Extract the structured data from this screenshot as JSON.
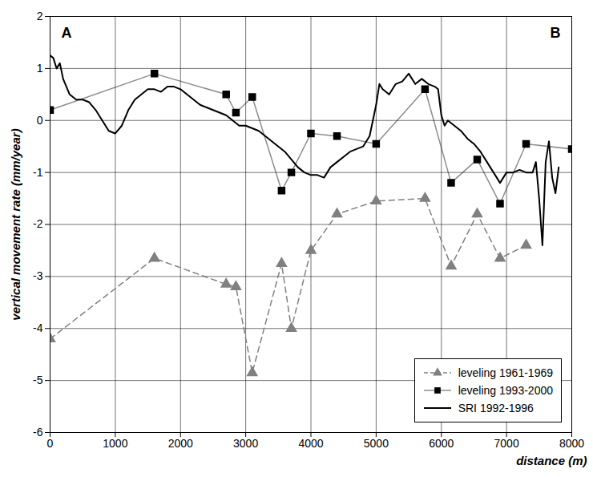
{
  "chart_data": {
    "type": "line",
    "xlabel": "distance (m)",
    "ylabel": "vertical movement rate (mm/year)",
    "annotations": [
      "A",
      "B"
    ],
    "xlim": [
      0,
      8000
    ],
    "xticks": [
      0,
      1000,
      2000,
      3000,
      4000,
      5000,
      6000,
      7000,
      8000
    ],
    "ylim": [
      -6,
      2
    ],
    "yticks": [
      -6,
      -5,
      -4,
      -3,
      -2,
      -1,
      0,
      1,
      2
    ],
    "grid": true,
    "legend": "bottom-right",
    "series": [
      {
        "name": "leveling 1961-1969",
        "color": "#808080",
        "marker": "triangle",
        "line_style": "dashed",
        "x": [
          0,
          1600,
          2700,
          2850,
          3100,
          3550,
          3700,
          4000,
          4400,
          5000,
          5750,
          6150,
          6550,
          6900,
          7300
        ],
        "values": [
          -4.2,
          -2.65,
          -3.15,
          -3.2,
          -4.85,
          -2.75,
          -4.0,
          -2.5,
          -1.8,
          -1.55,
          -1.5,
          -2.8,
          -1.8,
          -2.65,
          -2.4
        ]
      },
      {
        "name": "leveling 1993-2000",
        "color": "#000000",
        "marker": "square",
        "line_style": "solid",
        "x": [
          0,
          1600,
          2700,
          2850,
          3100,
          3550,
          3700,
          4000,
          4400,
          5000,
          5750,
          6150,
          6550,
          6900,
          7300,
          8000
        ],
        "values": [
          0.2,
          0.9,
          0.5,
          0.15,
          0.45,
          -1.35,
          -1.0,
          -0.25,
          -0.3,
          -0.45,
          0.6,
          -1.2,
          -0.75,
          -1.6,
          -0.45,
          -0.55
        ]
      },
      {
        "name": "SRI 1992-1996",
        "color": "#000000",
        "marker": "none",
        "line_style": "solid",
        "x": [
          0,
          50,
          100,
          150,
          200,
          300,
          400,
          500,
          600,
          700,
          800,
          900,
          1000,
          1100,
          1200,
          1300,
          1400,
          1500,
          1600,
          1700,
          1800,
          1900,
          2000,
          2100,
          2200,
          2300,
          2400,
          2500,
          2600,
          2700,
          2800,
          2900,
          3000,
          3100,
          3200,
          3300,
          3400,
          3500,
          3600,
          3700,
          3800,
          3900,
          4000,
          4100,
          4200,
          4300,
          4400,
          4500,
          4600,
          4700,
          4800,
          4900,
          5000,
          5050,
          5100,
          5200,
          5300,
          5400,
          5500,
          5600,
          5700,
          5800,
          5900,
          5950,
          6000,
          6050,
          6100,
          6200,
          6300,
          6400,
          6500,
          6600,
          6700,
          6800,
          6900,
          7000,
          7100,
          7200,
          7300,
          7400,
          7450,
          7500,
          7550,
          7600,
          7650,
          7700,
          7750,
          7800
        ],
        "values": [
          1.25,
          1.2,
          1.0,
          1.1,
          0.8,
          0.5,
          0.4,
          0.4,
          0.35,
          0.2,
          0.0,
          -0.2,
          -0.25,
          -0.1,
          0.2,
          0.4,
          0.5,
          0.6,
          0.6,
          0.55,
          0.65,
          0.65,
          0.6,
          0.5,
          0.4,
          0.3,
          0.25,
          0.2,
          0.15,
          0.1,
          0.0,
          -0.1,
          -0.1,
          -0.15,
          -0.2,
          -0.3,
          -0.4,
          -0.5,
          -0.6,
          -0.75,
          -0.9,
          -1.0,
          -1.05,
          -1.05,
          -1.1,
          -0.9,
          -0.8,
          -0.7,
          -0.6,
          -0.55,
          -0.5,
          -0.3,
          0.3,
          0.7,
          0.6,
          0.5,
          0.7,
          0.75,
          0.9,
          0.7,
          0.8,
          0.7,
          0.65,
          0.6,
          0.1,
          -0.1,
          0.0,
          -0.1,
          -0.2,
          -0.35,
          -0.45,
          -0.6,
          -0.8,
          -1.0,
          -1.2,
          -1.0,
          -1.0,
          -0.95,
          -1.0,
          -1.0,
          -0.8,
          -1.5,
          -2.4,
          -0.8,
          -0.4,
          -1.1,
          -1.4,
          -0.9
        ]
      }
    ]
  }
}
